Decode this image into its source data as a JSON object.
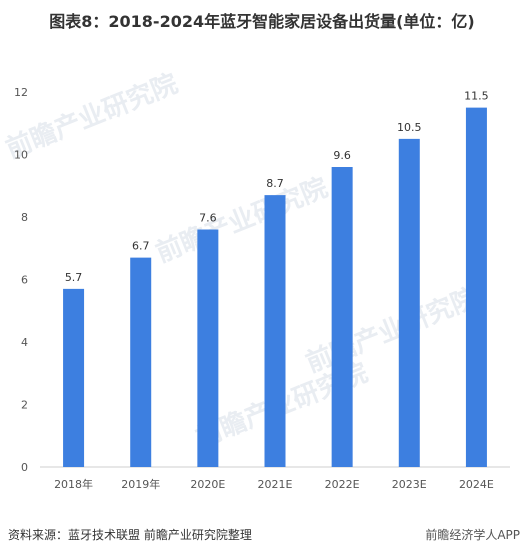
{
  "title": "图表8：2018-2024年蓝牙智能家居设备出货量(单位：亿)",
  "source": "资料来源：蓝牙技术联盟 前瞻产业研究院整理",
  "source_right": "前瞻经济学人APP",
  "watermark": "前瞻产业研究院",
  "colors": {
    "bar": "#3D7FE0",
    "axis": "#CFCFCF",
    "text": "#555555"
  },
  "chart_data": {
    "type": "bar",
    "title": "图表8：2018-2024年蓝牙智能家居设备出货量(单位：亿)",
    "categories": [
      "2018年",
      "2019年",
      "2020E",
      "2021E",
      "2022E",
      "2023E",
      "2024E"
    ],
    "values": [
      5.7,
      6.7,
      7.6,
      8.7,
      9.6,
      10.5,
      11.5
    ],
    "ylim": [
      0,
      12
    ],
    "yticks": [
      0,
      2,
      4,
      6,
      8,
      10,
      12
    ],
    "xlabel": "",
    "ylabel": "",
    "grid": false,
    "legend": "none"
  }
}
